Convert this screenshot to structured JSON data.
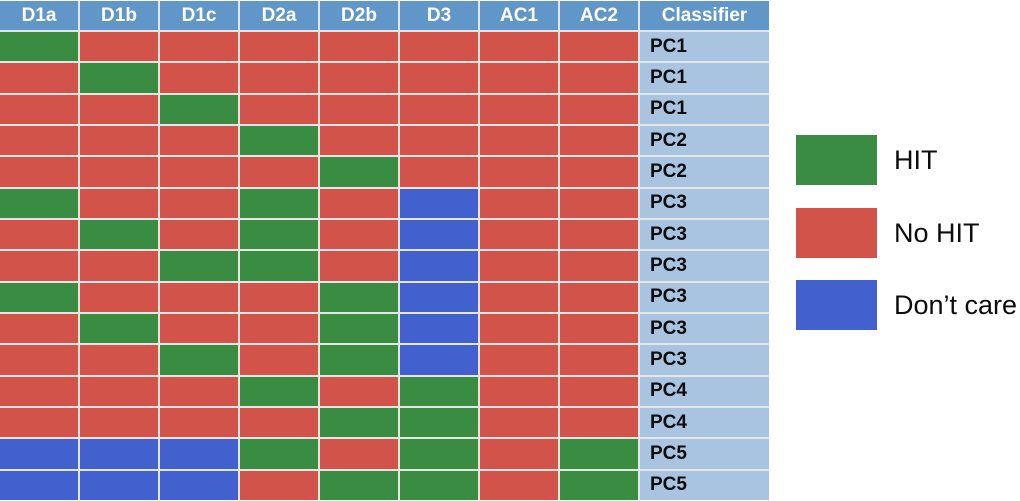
{
  "chart_data": {
    "type": "heatmap",
    "columns": [
      "D1a",
      "D1b",
      "D1c",
      "D2a",
      "D2b",
      "D3",
      "AC1",
      "AC2"
    ],
    "classifier_header": "Classifier",
    "cell_states": [
      "HIT",
      "No HIT",
      "Don’t care"
    ],
    "rows": [
      {
        "classifier": "PC1",
        "cells": [
          "HIT",
          "No HIT",
          "No HIT",
          "No HIT",
          "No HIT",
          "No HIT",
          "No HIT",
          "No HIT"
        ]
      },
      {
        "classifier": "PC1",
        "cells": [
          "No HIT",
          "HIT",
          "No HIT",
          "No HIT",
          "No HIT",
          "No HIT",
          "No HIT",
          "No HIT"
        ]
      },
      {
        "classifier": "PC1",
        "cells": [
          "No HIT",
          "No HIT",
          "HIT",
          "No HIT",
          "No HIT",
          "No HIT",
          "No HIT",
          "No HIT"
        ]
      },
      {
        "classifier": "PC2",
        "cells": [
          "No HIT",
          "No HIT",
          "No HIT",
          "HIT",
          "No HIT",
          "No HIT",
          "No HIT",
          "No HIT"
        ]
      },
      {
        "classifier": "PC2",
        "cells": [
          "No HIT",
          "No HIT",
          "No HIT",
          "No HIT",
          "HIT",
          "No HIT",
          "No HIT",
          "No HIT"
        ]
      },
      {
        "classifier": "PC3",
        "cells": [
          "HIT",
          "No HIT",
          "No HIT",
          "HIT",
          "No HIT",
          "Don’t care",
          "No HIT",
          "No HIT"
        ]
      },
      {
        "classifier": "PC3",
        "cells": [
          "No HIT",
          "HIT",
          "No HIT",
          "HIT",
          "No HIT",
          "Don’t care",
          "No HIT",
          "No HIT"
        ]
      },
      {
        "classifier": "PC3",
        "cells": [
          "No HIT",
          "No HIT",
          "HIT",
          "HIT",
          "No HIT",
          "Don’t care",
          "No HIT",
          "No HIT"
        ]
      },
      {
        "classifier": "PC3",
        "cells": [
          "HIT",
          "No HIT",
          "No HIT",
          "No HIT",
          "HIT",
          "Don’t care",
          "No HIT",
          "No HIT"
        ]
      },
      {
        "classifier": "PC3",
        "cells": [
          "No HIT",
          "HIT",
          "No HIT",
          "No HIT",
          "HIT",
          "Don’t care",
          "No HIT",
          "No HIT"
        ]
      },
      {
        "classifier": "PC3",
        "cells": [
          "No HIT",
          "No HIT",
          "HIT",
          "No HIT",
          "HIT",
          "Don’t care",
          "No HIT",
          "No HIT"
        ]
      },
      {
        "classifier": "PC4",
        "cells": [
          "No HIT",
          "No HIT",
          "No HIT",
          "HIT",
          "No HIT",
          "HIT",
          "No HIT",
          "No HIT"
        ]
      },
      {
        "classifier": "PC4",
        "cells": [
          "No HIT",
          "No HIT",
          "No HIT",
          "No HIT",
          "HIT",
          "HIT",
          "No HIT",
          "No HIT"
        ]
      },
      {
        "classifier": "PC5",
        "cells": [
          "Don’t care",
          "Don’t care",
          "Don’t care",
          "HIT",
          "No HIT",
          "HIT",
          "No HIT",
          "HIT"
        ]
      },
      {
        "classifier": "PC5",
        "cells": [
          "Don’t care",
          "Don’t care",
          "Don’t care",
          "No HIT",
          "HIT",
          "HIT",
          "No HIT",
          "HIT"
        ]
      }
    ],
    "legend": {
      "position": "right",
      "items": [
        {
          "label": "HIT",
          "color": "#3a8c43"
        },
        {
          "label": "No HIT",
          "color": "#d2534a"
        },
        {
          "label": "Don’t care",
          "color": "#4261ce"
        }
      ]
    }
  },
  "colors": {
    "HIT": "#3a8c43",
    "No HIT": "#d2534a",
    "Don’t care": "#4261ce",
    "header_bg": "#6196c8",
    "header_text": "#ffffff",
    "classifier_bg": "#a9c4e0",
    "grid_line": "#e6e6e6",
    "background": "#ffffff"
  },
  "legend_layout": {
    "tops": [
      135,
      208,
      280
    ]
  }
}
